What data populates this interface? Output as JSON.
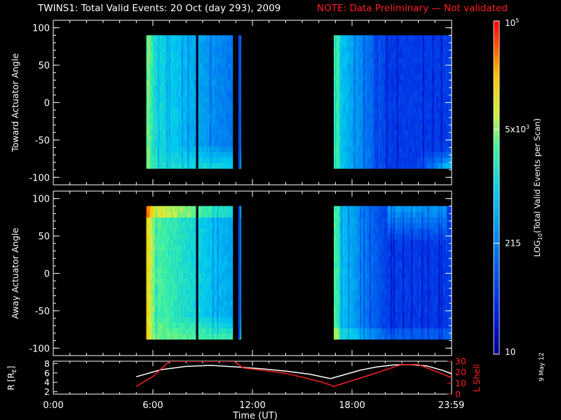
{
  "title": {
    "main": "TWINS1: Total Valid Events: 20 Oct (day 293), 2009",
    "note": "NOTE: Data Preliminary — Not validated"
  },
  "date_stamp": "9 May 12",
  "colors": {
    "background": "#000000",
    "axes": "#ffffff",
    "note": "#ff2020",
    "l_shell": "#ff2020",
    "r_line": "#ffffff"
  },
  "chart_data": [
    {
      "type": "heatmap",
      "name": "toward",
      "ylabel": "Toward Actuator Angle",
      "ylim": [
        -110,
        110
      ],
      "yticks": [
        100,
        50,
        0,
        -50,
        -100
      ],
      "xlim": [
        0,
        24
      ],
      "data_extent": {
        "angle": [
          -88,
          90
        ]
      },
      "segments": [
        {
          "start": 5.6,
          "end": 11.3,
          "gaps": [
            [
              8.6,
              8.7
            ],
            [
              10.8,
              11.15
            ]
          ]
        },
        {
          "start": 16.9,
          "end": 24.0,
          "gaps": []
        }
      ]
    },
    {
      "type": "heatmap",
      "name": "away",
      "ylabel": "Away Actuator Angle",
      "ylim": [
        -110,
        110
      ],
      "yticks": [
        100,
        50,
        0,
        -50,
        -100
      ],
      "xlim": [
        0,
        24
      ],
      "data_extent": {
        "angle": [
          -88,
          90
        ]
      },
      "segments": [
        {
          "start": 5.6,
          "end": 11.3,
          "gaps": [
            [
              8.6,
              8.7
            ],
            [
              10.8,
              11.15
            ]
          ]
        },
        {
          "start": 16.9,
          "end": 24.0,
          "gaps": []
        }
      ]
    },
    {
      "type": "line",
      "name": "orbit",
      "xlabel": "Time (UT)",
      "xticks": [
        {
          "t": 0,
          "label": "0:00"
        },
        {
          "t": 6,
          "label": "6:00"
        },
        {
          "t": 12,
          "label": "12:00"
        },
        {
          "t": 18,
          "label": "18:00"
        },
        {
          "t": 23.98,
          "label": "23:59"
        }
      ],
      "left_axis": {
        "label": "R [R",
        "label_sub": "E",
        "label_end": "]",
        "ylim": [
          1.5,
          8.5
        ],
        "ticks": [
          2,
          4,
          6,
          8
        ]
      },
      "right_axis": {
        "label": "L Shell",
        "ylim": [
          0,
          30
        ],
        "ticks": [
          0,
          10,
          20,
          30
        ]
      },
      "series": [
        {
          "axis": "left",
          "x": [
            5.0,
            6.5,
            8.0,
            9.5,
            11.0,
            12.5,
            14.0,
            15.5,
            16.7,
            17.5,
            18.5,
            19.5,
            20.5,
            21.5,
            22.5,
            23.5,
            24.0
          ],
          "y": [
            5.2,
            6.7,
            7.4,
            7.6,
            7.3,
            6.9,
            6.4,
            5.7,
            4.8,
            5.6,
            6.6,
            7.3,
            7.7,
            7.8,
            7.5,
            6.5,
            5.8
          ]
        },
        {
          "axis": "right",
          "x": [
            5.0,
            6.0,
            7.0,
            10.9,
            11.4,
            14.0,
            16.2,
            16.9,
            19.0,
            21.0,
            22.0,
            23.0,
            24.0
          ],
          "y": [
            7,
            16,
            30,
            30,
            24,
            19,
            11,
            7,
            17,
            27,
            27,
            21,
            15
          ]
        }
      ]
    }
  ],
  "colorbar": {
    "label": "LOG",
    "label_sub": "10",
    "label_rest": "(Total Valid  Events per Scan)",
    "range": [
      10,
      100000
    ],
    "scale": "log",
    "ticks": [
      {
        "value": 100000,
        "base": "10",
        "sup": "5"
      },
      {
        "value": 5000,
        "base": "5x10",
        "sup": "3"
      },
      {
        "value": 215,
        "base": "215",
        "sup": ""
      },
      {
        "value": 10,
        "base": "10",
        "sup": ""
      }
    ]
  }
}
